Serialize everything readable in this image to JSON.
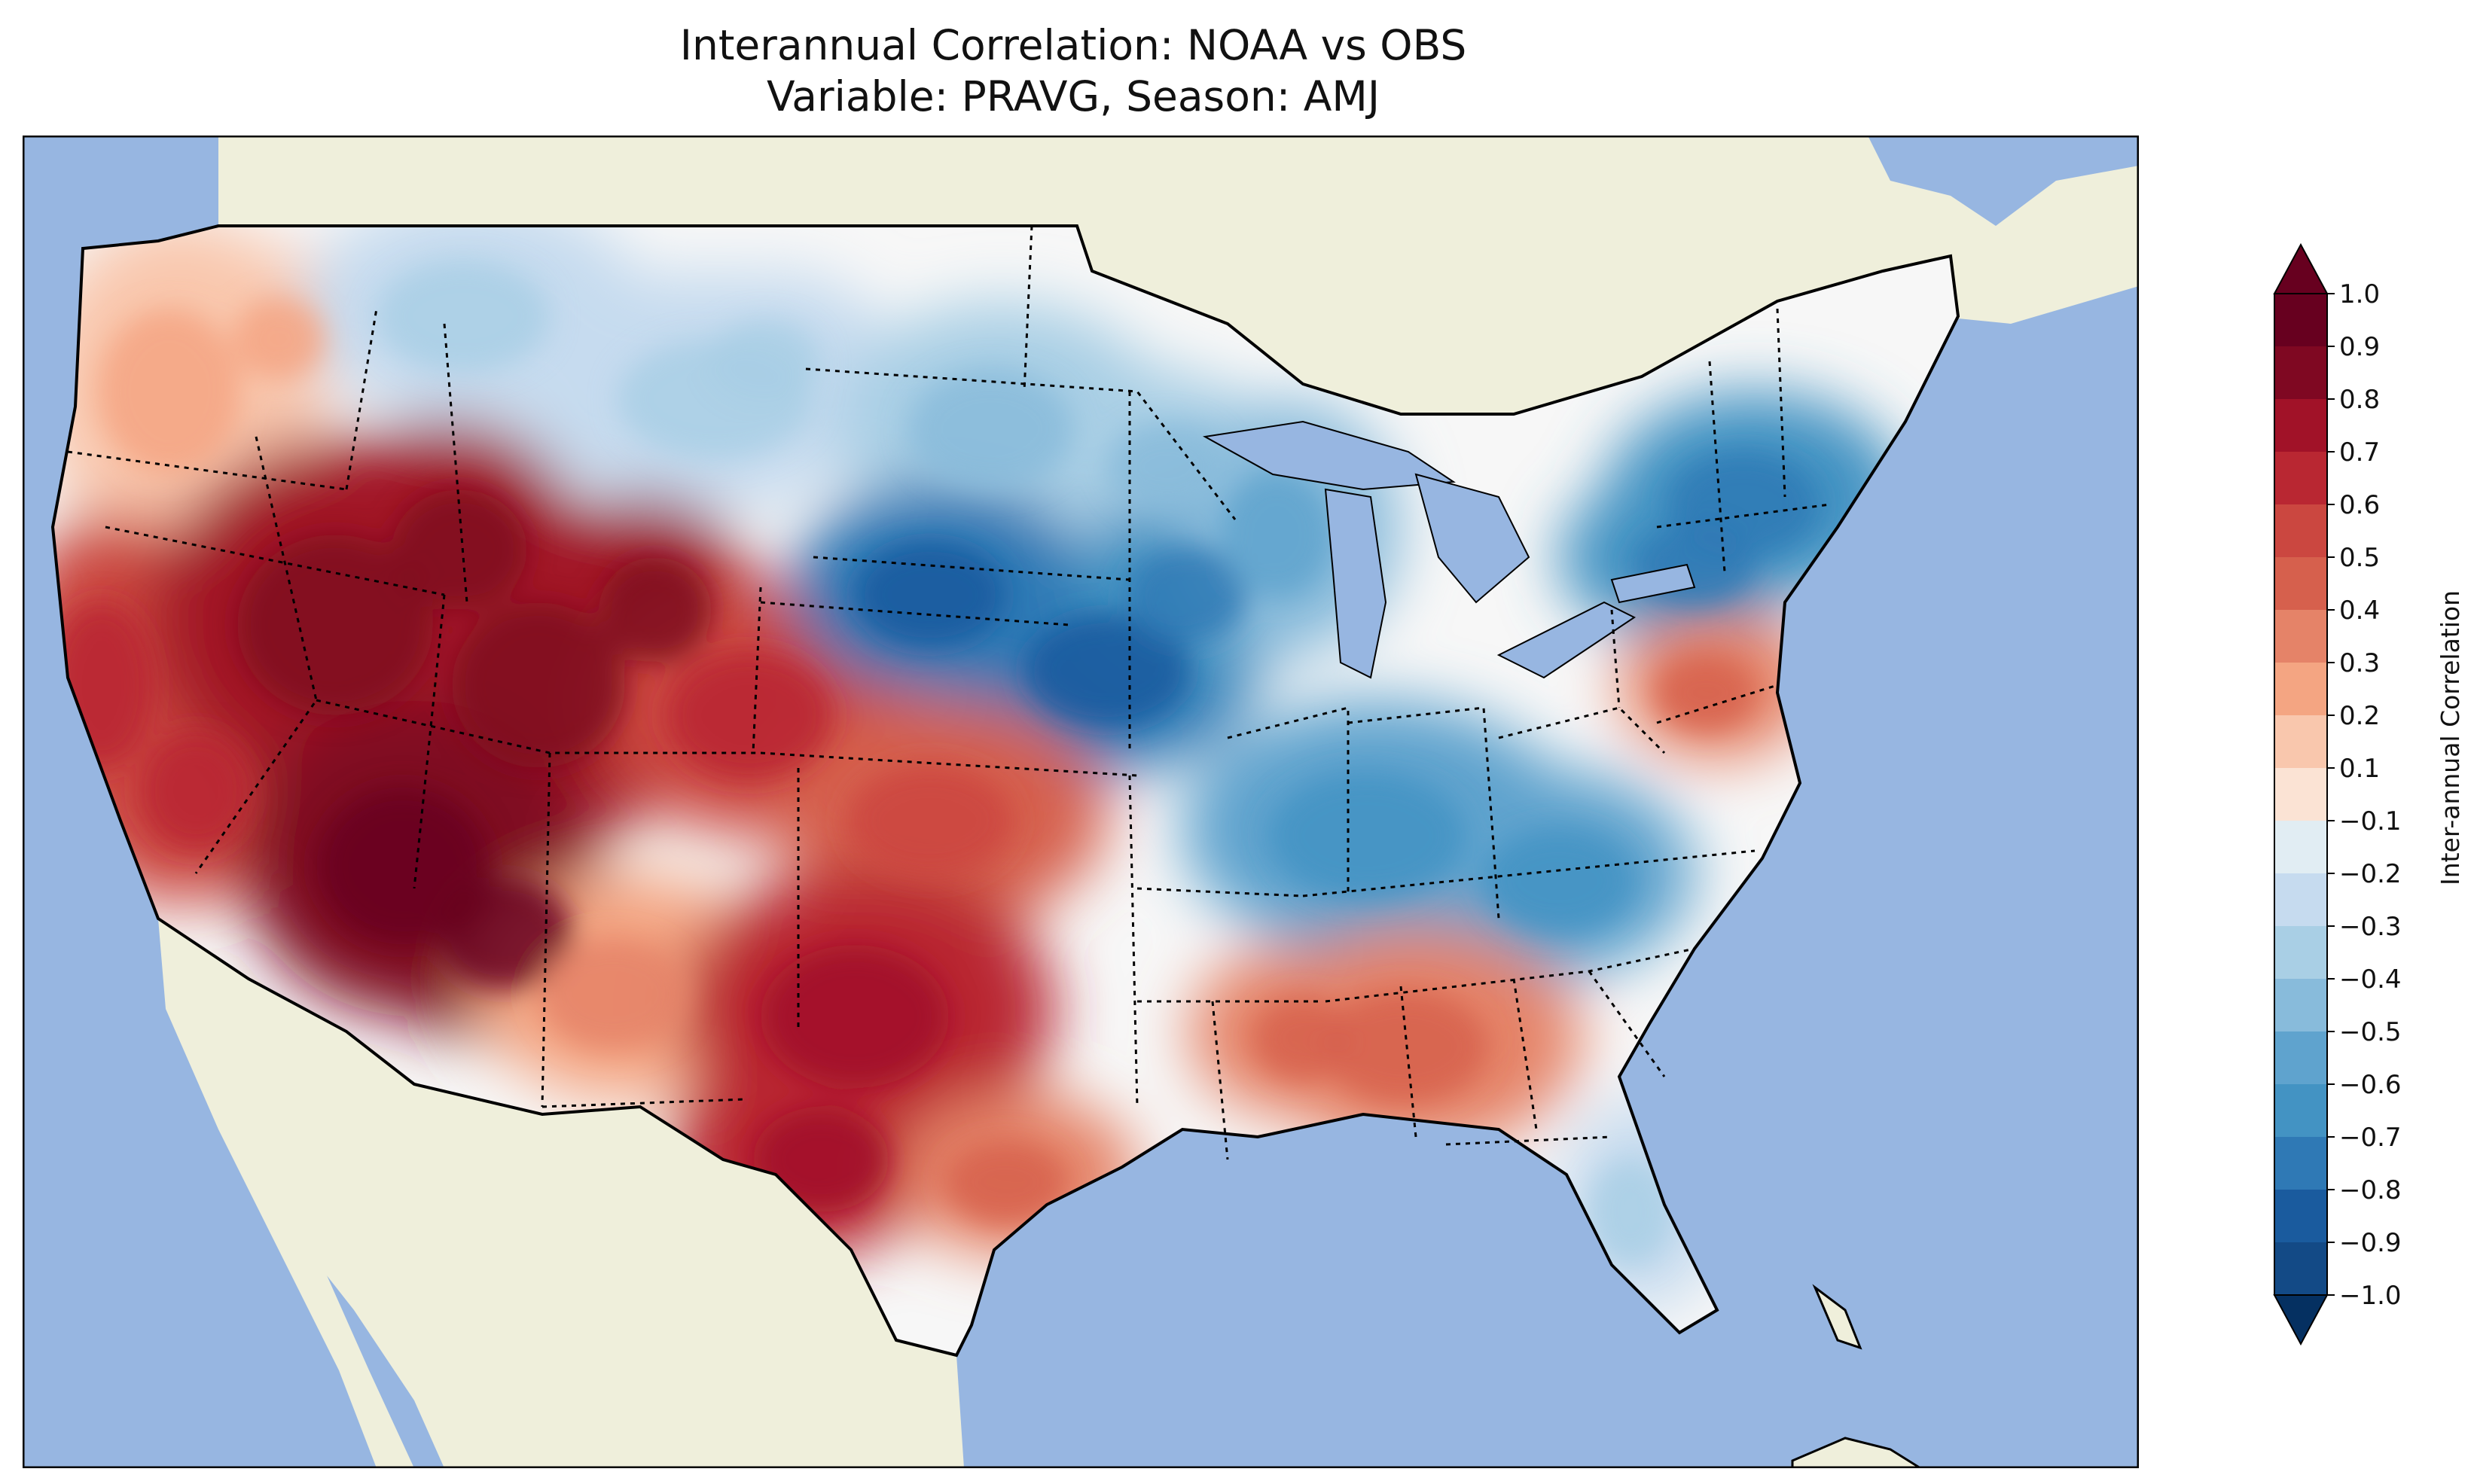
{
  "title_line1": "Interannual Correlation: NOAA vs OBS",
  "title_line2": "Variable: PRAVG, Season: AMJ",
  "colors": {
    "ocean": "#97b6e1",
    "land": "#efefdb",
    "frame": "#000000"
  },
  "colorbar": {
    "label": "Inter-annual Correlation",
    "extend": "both",
    "ticks": [
      "1.0",
      "0.9",
      "0.8",
      "0.7",
      "0.6",
      "0.5",
      "0.4",
      "0.3",
      "0.2",
      "0.1",
      "−0.1",
      "−0.2",
      "−0.3",
      "−0.4",
      "−0.5",
      "−0.6",
      "−0.7",
      "−0.8",
      "−0.9",
      "−1.0"
    ],
    "colors": [
      "#67001f",
      "#7f0822",
      "#a11228",
      "#b92732",
      "#cb4740",
      "#d6604d",
      "#e58368",
      "#f4a582",
      "#f9c7ad",
      "#fbe3d4",
      "#f7f7f7",
      "#e1edf3",
      "#c6dbef",
      "#a9cfe5",
      "#88bbdb",
      "#5fa3ce",
      "#4393c3",
      "#2f79b5",
      "#1a5b9e",
      "#134a86",
      "#053061"
    ]
  },
  "regions": [
    {
      "name": "pacific-northwest",
      "value": 0.2
    },
    {
      "name": "northern-rockies",
      "value": -0.2
    },
    {
      "name": "california",
      "value": 0.6
    },
    {
      "name": "great-basin",
      "value": 0.8
    },
    {
      "name": "utah-colorado-plateau",
      "value": 0.85
    },
    {
      "name": "arizona",
      "value": 0.9
    },
    {
      "name": "colorado",
      "value": 0.6
    },
    {
      "name": "new-mexico",
      "value": 0.3
    },
    {
      "name": "northern-plains",
      "value": -0.3
    },
    {
      "name": "central-plains-nebraska",
      "value": -0.7
    },
    {
      "name": "iowa",
      "value": -0.6
    },
    {
      "name": "kansas",
      "value": 0.5
    },
    {
      "name": "oklahoma-texas",
      "value": 0.7
    },
    {
      "name": "gulf-coast-louisiana",
      "value": 0.4
    },
    {
      "name": "upper-midwest",
      "value": -0.4
    },
    {
      "name": "ohio-valley",
      "value": -0.5
    },
    {
      "name": "northeast",
      "value": -0.6
    },
    {
      "name": "mid-atlantic",
      "value": 0.4
    },
    {
      "name": "southeast-georgia-carolinas",
      "value": 0.4
    },
    {
      "name": "florida",
      "value": -0.2
    }
  ]
}
